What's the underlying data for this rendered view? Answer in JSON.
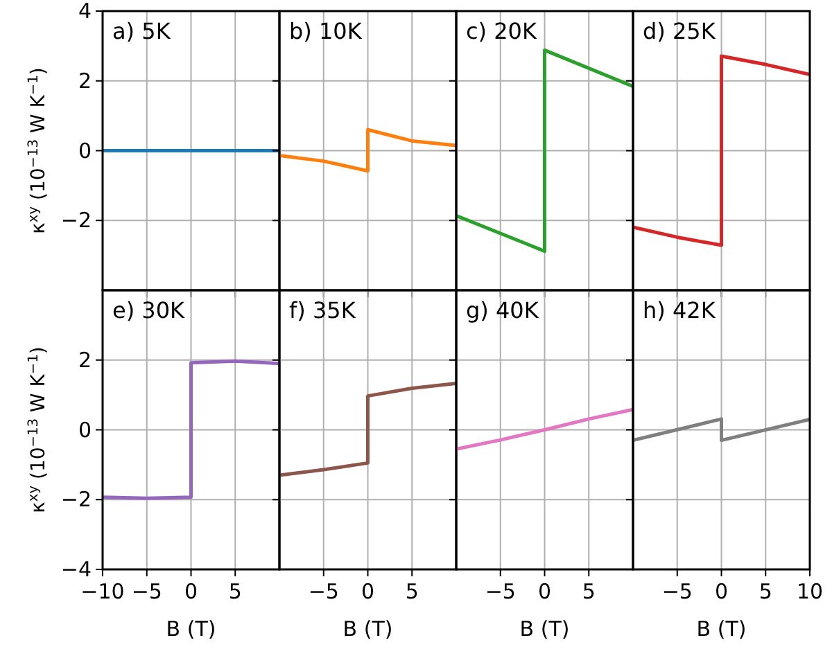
{
  "chart_data": [
    {
      "type": "line",
      "title": "a) 5K",
      "ylabel": "κ$^{xy}$ (10$^{−13}$ W K$^{−1}$)",
      "xlim": [
        -10,
        10
      ],
      "ylim": [
        -4,
        4
      ],
      "xticks": [
        -10,
        -5,
        0,
        5
      ],
      "yticks": [
        -2,
        0,
        2,
        4
      ],
      "tick_labels": "y",
      "grid": true,
      "series": [
        {
          "color": "#1f77b4",
          "x": [
            -10,
            -5,
            0,
            5,
            10
          ],
          "values": [
            0,
            0,
            0,
            0,
            0
          ]
        }
      ]
    },
    {
      "type": "line",
      "title": "b) 10K",
      "xlim": [
        -10,
        10
      ],
      "ylim": [
        -4,
        4
      ],
      "xticks": [
        -5,
        0,
        5
      ],
      "yticks": [
        -2,
        0,
        2
      ],
      "tick_labels": false,
      "grid": true,
      "series": [
        {
          "color": "#ff7f0e",
          "x": [
            -10,
            -5,
            0,
            0,
            5,
            10
          ],
          "values": [
            -0.14,
            -0.3,
            -0.58,
            0.6,
            0.28,
            0.15
          ]
        }
      ]
    },
    {
      "type": "line",
      "title": "c) 20K",
      "xlim": [
        -10,
        10
      ],
      "ylim": [
        -4,
        4
      ],
      "xticks": [
        -5,
        0,
        5
      ],
      "yticks": [
        -2,
        0,
        2
      ],
      "tick_labels": false,
      "grid": true,
      "series": [
        {
          "color": "#2ca02c",
          "x": [
            -10,
            0,
            0,
            10
          ],
          "values": [
            -1.86,
            -2.88,
            2.88,
            1.84
          ]
        }
      ]
    },
    {
      "type": "line",
      "title": "d) 25K",
      "xlim": [
        -10,
        10
      ],
      "ylim": [
        -4,
        4
      ],
      "xticks": [
        -5,
        0,
        5
      ],
      "yticks": [
        -2,
        0,
        2
      ],
      "tick_labels": false,
      "grid": true,
      "series": [
        {
          "color": "#d62728",
          "x": [
            -10,
            -5,
            0,
            0,
            5,
            10
          ],
          "values": [
            -2.19,
            -2.48,
            -2.71,
            2.71,
            2.47,
            2.18
          ]
        }
      ]
    },
    {
      "type": "line",
      "title": "e) 30K",
      "xlabel": "B (T)",
      "ylabel": "κ$^{xy}$ (10$^{−13}$ W K$^{−1}$)",
      "xlim": [
        -10,
        10
      ],
      "ylim": [
        -4,
        4
      ],
      "xticks": [
        -10,
        -5,
        0,
        5
      ],
      "yticks": [
        -4,
        -2,
        0,
        2
      ],
      "grid": true,
      "series": [
        {
          "color": "#9467bd",
          "x": [
            -10,
            -5,
            0,
            0,
            5,
            10
          ],
          "values": [
            -1.93,
            -1.96,
            -1.93,
            1.92,
            1.97,
            1.9
          ]
        }
      ]
    },
    {
      "type": "line",
      "title": "f) 35K",
      "xlabel": "B (T)",
      "xlim": [
        -10,
        10
      ],
      "ylim": [
        -4,
        4
      ],
      "xticks": [
        -5,
        0,
        5
      ],
      "yticks": [
        -2,
        0,
        2
      ],
      "tick_labels": "x",
      "grid": true,
      "series": [
        {
          "color": "#8c564b",
          "x": [
            -10,
            -5,
            0,
            0,
            5,
            10
          ],
          "values": [
            -1.3,
            -1.14,
            -0.95,
            0.97,
            1.19,
            1.33
          ]
        }
      ]
    },
    {
      "type": "line",
      "title": "g) 40K",
      "xlabel": "B (T)",
      "xlim": [
        -10,
        10
      ],
      "ylim": [
        -4,
        4
      ],
      "xticks": [
        -5,
        0,
        5
      ],
      "yticks": [
        -2,
        0,
        2
      ],
      "tick_labels": "x",
      "grid": true,
      "series": [
        {
          "color": "#e377c2",
          "x": [
            -10,
            -5,
            0,
            5,
            10
          ],
          "values": [
            -0.55,
            -0.29,
            0,
            0.31,
            0.58
          ]
        }
      ]
    },
    {
      "type": "line",
      "title": "h) 42K",
      "xlabel": "B (T)",
      "xlim": [
        -10,
        10
      ],
      "ylim": [
        -4,
        4
      ],
      "xticks": [
        -5,
        0,
        5,
        10
      ],
      "yticks": [
        -2,
        0,
        2
      ],
      "tick_labels": "x",
      "grid": true,
      "series": [
        {
          "color": "#7f7f7f",
          "x": [
            -10,
            0,
            0,
            10
          ],
          "values": [
            -0.3,
            0.31,
            -0.3,
            0.3
          ]
        }
      ]
    }
  ]
}
